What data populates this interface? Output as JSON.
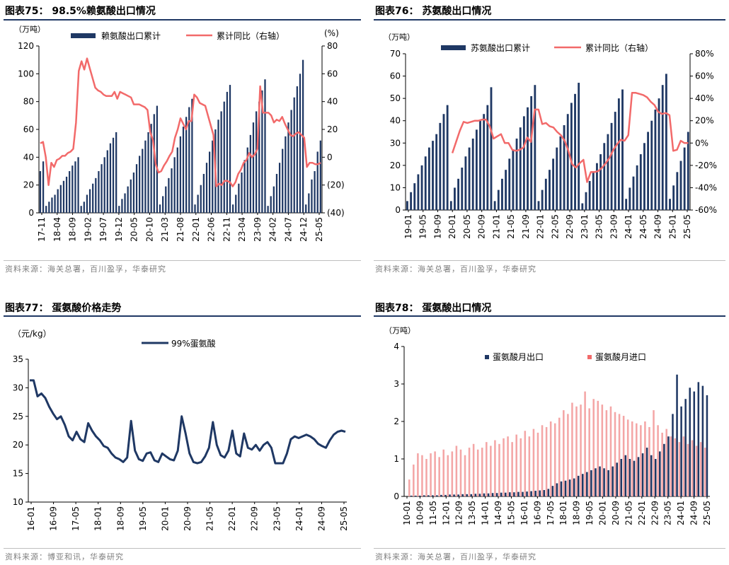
{
  "colors": {
    "navy": "#1f3864",
    "red": "#f26a6a",
    "pink": "#f4a6a6"
  },
  "charts": [
    {
      "title": "图表75：  98.5%赖氨酸出口情况",
      "source": "资料来源：海关总署，百川盈孚，华泰研究",
      "chart_data": {
        "type": "bar",
        "ylabel_left": "（万吨）",
        "ylabel_right": "(%)",
        "ylim": [
          0,
          120
        ],
        "y2lim": [
          -40,
          80
        ],
        "yticks": [
          "0",
          "20",
          "40",
          "60",
          "80",
          "100",
          "120"
        ],
        "y2ticks": [
          "(40)",
          "(20)",
          "0",
          "20",
          "40",
          "60",
          "80"
        ],
        "xticks": [
          "17-11",
          "18-04",
          "18-09",
          "19-02",
          "19-07",
          "19-12",
          "20-05",
          "20-10",
          "21-03",
          "21-08",
          "22-01",
          "22-06",
          "22-11",
          "23-04",
          "23-09",
          "24-02",
          "24-07",
          "24-12",
          "25-05"
        ],
        "series": [
          {
            "name": "赖氨酸出口累计",
            "values": [
              30,
              37,
              5,
              8,
              11,
              13,
              17,
              20,
              23,
              26,
              30,
              34,
              37,
              40,
              5,
              8,
              13,
              17,
              21,
              25,
              30,
              35,
              40,
              45,
              50,
              54,
              58,
              5,
              10,
              14,
              19,
              24,
              29,
              35,
              41,
              46,
              52,
              58,
              64,
              71,
              77,
              6,
              12,
              19,
              25,
              32,
              40,
              47,
              55,
              62,
              69,
              76,
              82,
              6,
              13,
              20,
              28,
              36,
              44,
              52,
              60,
              67,
              73,
              80,
              87,
              92,
              6,
              13,
              21,
              29,
              38,
              47,
              56,
              65,
              73,
              80,
              88,
              96,
              5,
              12,
              19,
              28,
              36,
              46,
              55,
              65,
              74,
              83,
              91,
              100,
              110,
              6,
              14,
              24,
              30,
              44,
              52
            ]
          },
          {
            "name": "累计同比（右轴）",
            "values": [
              10,
              11,
              0,
              -20,
              -4,
              -7,
              -2,
              -1,
              1,
              1,
              3,
              4,
              6,
              25,
              62,
              69,
              63,
              71,
              64,
              57,
              50,
              48,
              47,
              45,
              44,
              44,
              44,
              47,
              42,
              47,
              46,
              45,
              44,
              43,
              38,
              38,
              38,
              37,
              36,
              34,
              18,
              12,
              -5,
              -11,
              -10,
              -6,
              -3,
              1,
              4,
              14,
              20,
              28,
              24,
              20,
              26,
              26,
              45,
              43,
              39,
              38,
              37,
              30,
              23,
              16,
              -21,
              -19,
              -20,
              -17,
              -17,
              -18,
              -21,
              -18,
              -12,
              -9,
              -4,
              -2,
              3,
              0,
              2,
              6,
              51,
              32,
              32,
              32,
              30,
              25,
              27,
              26,
              29,
              24,
              20,
              16,
              15,
              17,
              18,
              16,
              14,
              -7,
              -4,
              -4,
              -5,
              -5,
              -4
            ]
          }
        ]
      }
    },
    {
      "title": "图表76：  苏氨酸出口情况",
      "source": "资料来源：海关总署，百川盈孚，华泰研究",
      "chart_data": {
        "type": "bar",
        "ylabel_left": "（万吨）",
        "ylabel_right": "",
        "ylim": [
          0,
          70
        ],
        "y2lim": [
          -60,
          80
        ],
        "yticks": [
          "0",
          "10",
          "20",
          "30",
          "40",
          "50",
          "60",
          "70"
        ],
        "y2ticks": [
          "-60%",
          "-40%",
          "-20%",
          "0%",
          "20%",
          "40%",
          "60%",
          "80%"
        ],
        "xticks": [
          "19-01",
          "19-05",
          "19-09",
          "20-01",
          "20-05",
          "20-09",
          "21-01",
          "21-05",
          "21-09",
          "22-01",
          "22-05",
          "22-09",
          "23-01",
          "23-05",
          "23-09",
          "24-01",
          "24-05",
          "24-09",
          "25-01",
          "25-05"
        ],
        "series": [
          {
            "name": "苏氨酸出口累计",
            "values": [
              4,
              8,
              12,
              16,
              20,
              24,
              28,
              31,
              34,
              39,
              43,
              47,
              4,
              10,
              14,
              19,
              24,
              28,
              32,
              36,
              40,
              43,
              47,
              55,
              4,
              9,
              14,
              18,
              23,
              27,
              32,
              37,
              42,
              46,
              51,
              56,
              4,
              9,
              14,
              18,
              23,
              28,
              33,
              38,
              43,
              48,
              52,
              57,
              3,
              8,
              13,
              17,
              21,
              25,
              30,
              34,
              39,
              44,
              50,
              54,
              5,
              10,
              15,
              20,
              25,
              30,
              35,
              40,
              45,
              50,
              56,
              61,
              5,
              11,
              17,
              22,
              28,
              35
            ]
          },
          {
            "name": "累计同比（右轴）",
            "values": [
              null,
              null,
              null,
              null,
              null,
              null,
              null,
              null,
              null,
              null,
              null,
              null,
              -9,
              1,
              11,
              19,
              18,
              19,
              20,
              20,
              21,
              21,
              15,
              4,
              6,
              8,
              0,
              0,
              -6,
              -7,
              -6,
              -4,
              5,
              1,
              30,
              30,
              17,
              18,
              15,
              14,
              10,
              7,
              2,
              -7,
              -19,
              -22,
              -18,
              -15,
              -35,
              -26,
              -26,
              -25,
              -22,
              -18,
              -13,
              -6,
              -1,
              3,
              2,
              7,
              45,
              45,
              44,
              43,
              41,
              37,
              34,
              28,
              26,
              27,
              25,
              -7,
              -6,
              2,
              0,
              0
            ]
          }
        ]
      }
    },
    {
      "title": "图表77：  蛋氨酸价格走势",
      "source": "资料来源：博亚和讯，华泰研究",
      "chart_data": {
        "type": "line",
        "ylabel": "（元/kg）",
        "ylim": [
          10,
          35
        ],
        "yticks": [
          "10",
          "15",
          "20",
          "25",
          "30",
          "35"
        ],
        "xticks": [
          "16-01",
          "16-09",
          "17-05",
          "18-01",
          "18-09",
          "19-05",
          "20-01",
          "20-09",
          "21-05",
          "22-01",
          "22-09",
          "23-05",
          "24-01",
          "24-09",
          "25-05"
        ],
        "series": [
          {
            "name": "99%蛋氨酸",
            "values": [
              31.3,
              31.3,
              28.5,
              29.0,
              28.2,
              26.7,
              25.5,
              24.5,
              25.0,
              23.5,
              21.5,
              20.8,
              22.3,
              21.0,
              20.5,
              23.8,
              22.5,
              21.5,
              20.8,
              19.8,
              19.5,
              18.5,
              17.8,
              17.5,
              17.0,
              17.8,
              24.2,
              19.0,
              17.5,
              17.2,
              18.5,
              18.7,
              17.3,
              17.0,
              18.5,
              18.0,
              17.5,
              17.3,
              19.0,
              25.0,
              22.0,
              18.5,
              17.0,
              16.8,
              17.0,
              18.0,
              19.5,
              24.0,
              20.0,
              18.2,
              17.8,
              19.0,
              22.5,
              18.5,
              18.0,
              22.0,
              19.5,
              19.2,
              20.0,
              19.0,
              20.0,
              20.5,
              19.5,
              16.8,
              16.8,
              16.8,
              18.5,
              21.0,
              21.5,
              21.2,
              21.5,
              21.8,
              21.5,
              21.0,
              20.2,
              19.8,
              19.5,
              20.8,
              21.8,
              22.3,
              22.5,
              22.3
            ]
          }
        ]
      }
    },
    {
      "title": "图表78：  蛋氨酸出口情况",
      "source": "资料来源：海关总署，百川盈孚，华泰研究",
      "chart_data": {
        "type": "bar",
        "ylabel": "（万吨）",
        "ylim": [
          0,
          4
        ],
        "yticks": [
          "0",
          "1",
          "2",
          "3",
          "4"
        ],
        "xticks": [
          "10-01",
          "10-09",
          "11-05",
          "12-01",
          "12-09",
          "13-05",
          "14-01",
          "14-09",
          "15-05",
          "16-01",
          "16-09",
          "17-05",
          "18-01",
          "18-09",
          "19-05",
          "20-01",
          "20-09",
          "21-05",
          "22-01",
          "22-09",
          "23-05",
          "24-01",
          "24-09",
          "25-05"
        ],
        "series": [
          {
            "name": "蛋氨酸月出口",
            "values": [
              0.02,
              0.02,
              0.02,
              0.03,
              0.03,
              0.03,
              0.03,
              0.04,
              0.04,
              0.05,
              0.05,
              0.05,
              0.06,
              0.06,
              0.06,
              0.07,
              0.07,
              0.08,
              0.08,
              0.09,
              0.09,
              0.1,
              0.1,
              0.11,
              0.11,
              0.12,
              0.12,
              0.13,
              0.14,
              0.15,
              0.16,
              0.17,
              0.2,
              0.28,
              0.35,
              0.4,
              0.42,
              0.45,
              0.48,
              0.55,
              0.6,
              0.65,
              0.7,
              0.75,
              0.8,
              0.75,
              0.7,
              0.8,
              0.9,
              1.0,
              1.1,
              1.0,
              0.95,
              1.05,
              1.15,
              1.3,
              1.1,
              1.0,
              1.2,
              1.4,
              1.6,
              2.2,
              3.25,
              2.4,
              2.6,
              2.9,
              2.8,
              3.05,
              2.95,
              2.7
            ]
          },
          {
            "name": "蛋氨酸月进口",
            "values": [
              0.45,
              0.85,
              1.15,
              1.1,
              1.0,
              1.15,
              1.2,
              1.05,
              1.25,
              1.1,
              1.2,
              1.35,
              1.25,
              1.1,
              1.3,
              1.4,
              1.25,
              1.3,
              1.45,
              1.35,
              1.5,
              1.4,
              1.55,
              1.6,
              1.45,
              1.65,
              1.55,
              1.75,
              1.6,
              1.8,
              1.7,
              1.9,
              1.85,
              2.0,
              1.95,
              2.1,
              2.3,
              2.2,
              2.5,
              2.4,
              2.45,
              2.8,
              2.35,
              2.6,
              2.55,
              2.45,
              2.3,
              2.4,
              2.25,
              2.2,
              2.15,
              2.05,
              2.0,
              1.95,
              1.9,
              2.0,
              1.85,
              2.3,
              1.9,
              1.7,
              1.8,
              1.6,
              1.55,
              1.45,
              1.6,
              1.4,
              1.5,
              1.35,
              1.45,
              1.3
            ]
          }
        ]
      }
    }
  ]
}
